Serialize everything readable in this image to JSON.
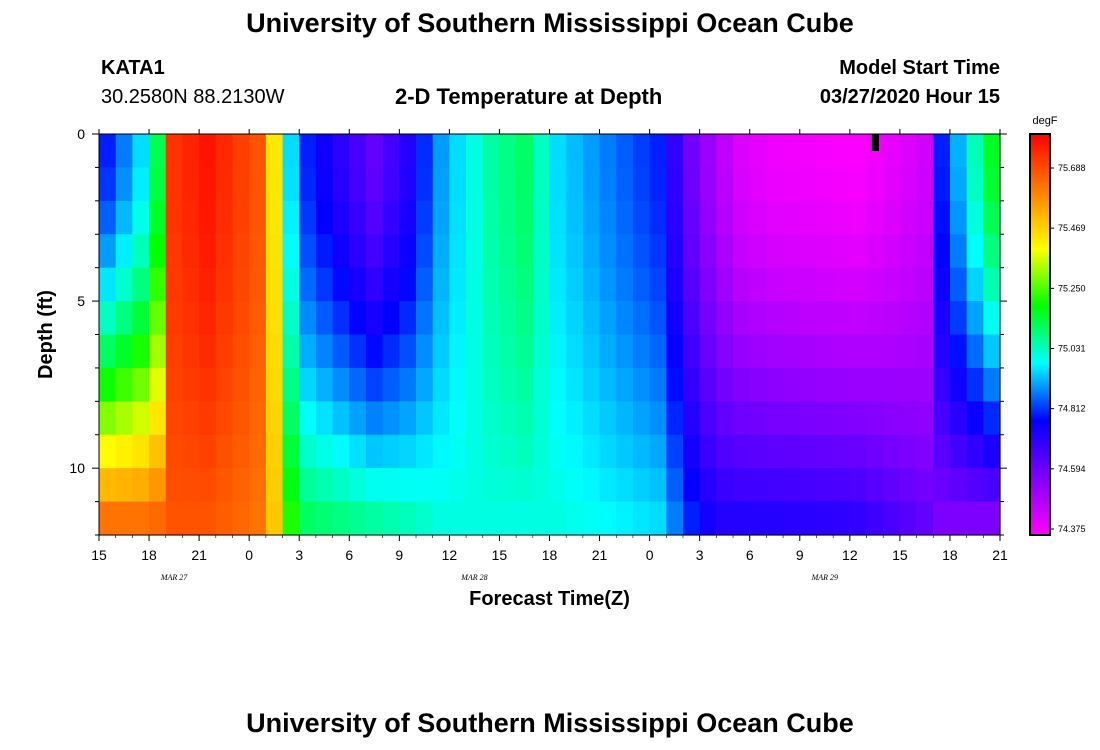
{
  "header": {
    "title": "University of Southern Mississippi Ocean Cube",
    "station": "KATA1",
    "coordinates": "30.2580N 88.2130W",
    "plot_title": "2-D Temperature at Depth",
    "model_label": "Model Start Time",
    "model_time": "03/27/2020 Hour 15"
  },
  "footer": {
    "title": "University of Southern Mississippi Ocean Cube"
  },
  "chart_data": {
    "type": "heatmap",
    "xlabel": "Forecast Time(Z)",
    "ylabel": "Depth (ft)",
    "x_ticks": [
      "15",
      "18",
      "21",
      "0",
      "3",
      "6",
      "9",
      "12",
      "15",
      "18",
      "21",
      "0",
      "3",
      "6",
      "9",
      "12",
      "15",
      "18",
      "21"
    ],
    "date_labels": [
      {
        "label": "MAR 27",
        "after_tick": 1
      },
      {
        "label": "MAR 28",
        "after_tick": 7
      },
      {
        "label": "MAR 29",
        "after_tick": 14
      }
    ],
    "y_ticks": [
      0,
      5,
      10
    ],
    "ylim": [
      0,
      12
    ],
    "y_inverted": true,
    "hours": 54,
    "depth_levels": 12,
    "colorbar": {
      "unit": "degF",
      "min": 74.375,
      "max": 75.78,
      "tick_labels": [
        "75.688",
        "75.469",
        "75.250",
        "75.031",
        "74.812",
        "74.594",
        "74.375"
      ],
      "colors": [
        "#ff00ff",
        "#8000ff",
        "#0000ff",
        "#00ffff",
        "#00ff00",
        "#ffff00",
        "#ff8000",
        "#ff0000"
      ]
    },
    "time_marker_hour": 46.5,
    "temperature_profile_hours": [
      0,
      2,
      3.5,
      4,
      6,
      9,
      10.5,
      11,
      12,
      16,
      18,
      20,
      23,
      25,
      27,
      33,
      35,
      36.5,
      38,
      40,
      45,
      49,
      50,
      53
    ],
    "temperature_surface": [
      74.8,
      74.95,
      75.2,
      75.7,
      75.75,
      75.65,
      75.3,
      74.95,
      74.8,
      74.62,
      74.72,
      74.9,
      75.05,
      75.1,
      74.95,
      74.8,
      74.6,
      74.5,
      74.43,
      74.4,
      74.38,
      74.45,
      74.8,
      75.15
    ],
    "temperature_bottom": [
      75.6,
      75.6,
      75.62,
      75.65,
      75.65,
      75.6,
      75.4,
      75.2,
      75.1,
      75.05,
      75.03,
      75.0,
      75.0,
      75.0,
      75.0,
      74.95,
      74.8,
      74.72,
      74.72,
      74.72,
      74.7,
      74.62,
      74.58,
      74.58
    ]
  }
}
